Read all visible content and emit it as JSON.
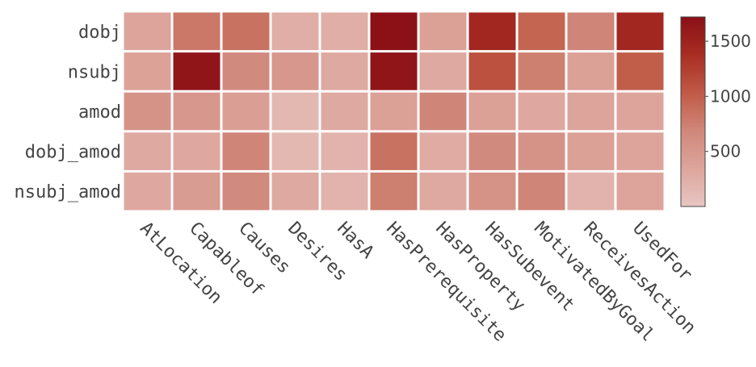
{
  "chart_data": {
    "type": "heatmap",
    "title": "",
    "xlabel": "",
    "ylabel": "",
    "x_categories": [
      "AtLocation",
      "Capableof",
      "Causes",
      "Desires",
      "HasA",
      "HasPrerequisite",
      "HasProperty",
      "HasSubevent",
      "MotivatedByGoal",
      "ReceivesAction",
      "UsedFor"
    ],
    "y_categories": [
      "dobj",
      "nsubj",
      "amod",
      "dobj_amod",
      "nsubj_amod"
    ],
    "values": [
      [
        350,
        800,
        850,
        250,
        250,
        1700,
        400,
        1450,
        950,
        700,
        1450
      ],
      [
        380,
        1650,
        650,
        500,
        300,
        1650,
        300,
        1100,
        750,
        400,
        1000
      ],
      [
        550,
        500,
        420,
        150,
        300,
        400,
        700,
        400,
        320,
        350,
        350
      ],
      [
        300,
        320,
        700,
        150,
        200,
        850,
        280,
        650,
        550,
        400,
        350
      ],
      [
        320,
        450,
        650,
        300,
        200,
        750,
        300,
        550,
        700,
        200,
        350
      ]
    ],
    "colorscale": {
      "min": 0,
      "max": 1720,
      "stops": [
        "#e8c6c2",
        "#dda59c",
        "#d0877a",
        "#c05a45",
        "#a82e23",
        "#8a0f16"
      ],
      "ticks": [
        500,
        1000,
        1500
      ],
      "tick_labels": [
        "500",
        "1000",
        "1500"
      ]
    },
    "legend": "colorbar-right",
    "grid": false
  }
}
